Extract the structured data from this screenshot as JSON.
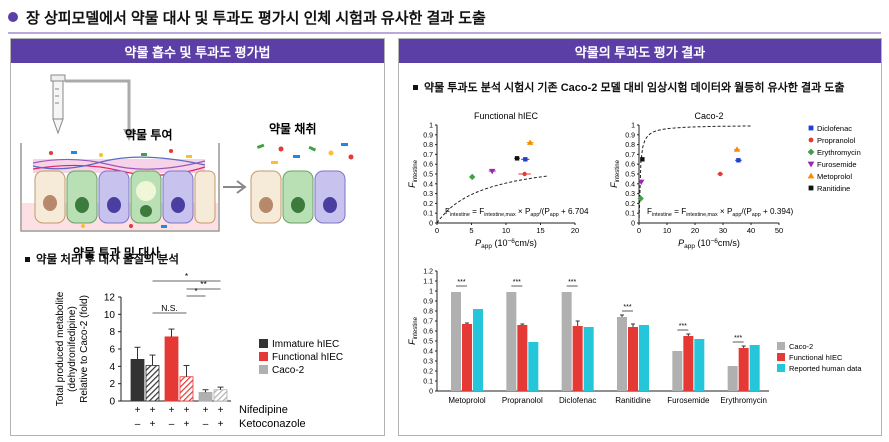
{
  "headline": "장 상피모델에서 약물 대사 및 투과도 평가시 인체 시험과 유사한 결과 도출",
  "left_panel": {
    "title": "약물 흡수 및 투과도 평가법",
    "label_dose": "약물 투여",
    "label_collect": "약물 채취",
    "label_transport": "약물 투과 및 대사",
    "section_title": "약물 처리 후 대사 물질의 분석"
  },
  "right_panel": {
    "title": "약물의 투과도 평가 결과",
    "summary": "약물 투과도 분석 시험시 기존 Caco-2 모델 대비 임상시험 데이터와 월등히 유사한 결과 도출"
  },
  "colors": {
    "purple": "#5b3fa6",
    "immature": "#333333",
    "functional": "#e53935",
    "caco2": "#b0b0b0",
    "reported": "#26c6da"
  },
  "chart_data": [
    {
      "id": "metabolite",
      "type": "bar",
      "ylabel_lines": [
        "Total produced metabolite",
        "(dehydronifedipine)",
        "Relative to Caco-2 (fold)"
      ],
      "ylim": [
        0,
        12
      ],
      "yticks": [
        0,
        2,
        4,
        6,
        8,
        10,
        12
      ],
      "groups": [
        {
          "name": "Immature hIEC",
          "color": "#333333",
          "values": [
            4.8,
            4.1
          ],
          "errors": [
            1.4,
            1.2
          ]
        },
        {
          "name": "Functional hIEC",
          "color": "#e53935",
          "values": [
            7.4,
            2.8
          ],
          "errors": [
            0.9,
            1.3
          ]
        },
        {
          "name": "Caco-2",
          "color": "#b0b0b0",
          "values": [
            1.0,
            1.3
          ],
          "errors": [
            0.3,
            0.3
          ]
        }
      ],
      "row_labels": [
        "Nifedipine",
        "Ketoconazole"
      ],
      "nifedipine_signs": [
        "+",
        "+",
        "+",
        "+",
        "+",
        "+"
      ],
      "ketoconazole_signs": [
        "–",
        "+",
        "–",
        "+",
        "–",
        "+"
      ],
      "significance": [
        {
          "label": "*",
          "from": 1,
          "to": 5
        },
        {
          "label": "**",
          "from": 3,
          "to": 5
        },
        {
          "label": "*",
          "from": 3,
          "to": 4
        },
        {
          "label": "N.S.",
          "from": 1,
          "to": 3
        }
      ],
      "legend": [
        "Immature hIEC",
        "Functional hIEC",
        "Caco-2"
      ]
    },
    {
      "id": "functional-scatter",
      "type": "scatter",
      "title": "Functional hIEC",
      "xlabel_main": "P",
      "xlabel_sub": "app",
      "xlabel_unit": " (10",
      "xlabel_exp": "−6",
      "xlabel_tail": "cm/s)",
      "ylabel_main": "F",
      "ylabel_sub": "intestine",
      "xlim": [
        0,
        20
      ],
      "ylim": [
        0,
        1
      ],
      "xticks": [
        0,
        5,
        10,
        15,
        20
      ],
      "yticks": [
        0,
        0.1,
        0.2,
        0.3,
        0.4,
        0.5,
        0.6,
        0.7,
        0.8,
        0.9,
        1
      ],
      "fit_fmax": 0.68,
      "fit_k": 6.704,
      "equation": [
        "F",
        "intestine",
        " = F",
        "intestine,max",
        " × P",
        "app",
        "/(P",
        "app",
        " + 6.704"
      ],
      "points": [
        {
          "drug": "Diclofenac",
          "x": 12.8,
          "y": 0.65,
          "xerr": 0.6,
          "color": "#1f3fd1",
          "shape": "square"
        },
        {
          "drug": "Propranolol",
          "x": 12.7,
          "y": 0.5,
          "xerr": 0.9,
          "color": "#e53935",
          "shape": "circle"
        },
        {
          "drug": "Erythromycin",
          "x": 5.1,
          "y": 0.47,
          "xerr": 0.4,
          "color": "#43a047",
          "shape": "diamond"
        },
        {
          "drug": "Furosemide",
          "x": 8.0,
          "y": 0.53,
          "xerr": 0.5,
          "color": "#9c27b0",
          "shape": "triangle-down"
        },
        {
          "drug": "Metoprolol",
          "x": 13.5,
          "y": 0.82,
          "xerr": 0.5,
          "color": "#fb8c00",
          "shape": "triangle"
        },
        {
          "drug": "Ranitidine",
          "x": 11.6,
          "y": 0.66,
          "xerr": 0.4,
          "color": "#111111",
          "shape": "square"
        }
      ]
    },
    {
      "id": "caco2-scatter",
      "type": "scatter",
      "title": "Caco-2",
      "xlabel_main": "P",
      "xlabel_sub": "app",
      "xlabel_unit": " (10",
      "xlabel_exp": "−6",
      "xlabel_tail": "cm/s)",
      "ylabel_main": "F",
      "ylabel_sub": "intestine",
      "xlim": [
        0,
        50
      ],
      "ylim": [
        0,
        1
      ],
      "xticks": [
        0,
        10,
        20,
        30,
        40,
        50
      ],
      "yticks": [
        0,
        0.1,
        0.2,
        0.3,
        0.4,
        0.5,
        0.6,
        0.7,
        0.8,
        0.9,
        1
      ],
      "fit_fmax": 1.0,
      "fit_k": 0.394,
      "equation": [
        "F",
        "intestine",
        " = F",
        "intestine,max",
        " × P",
        "app",
        "/(P",
        "app",
        " + 0.394)"
      ],
      "points": [
        {
          "drug": "Diclofenac",
          "x": 35.5,
          "y": 0.64,
          "xerr": 1.2,
          "color": "#1f3fd1",
          "shape": "square"
        },
        {
          "drug": "Propranolol",
          "x": 29.0,
          "y": 0.5,
          "xerr": 1.0,
          "color": "#e53935",
          "shape": "circle"
        },
        {
          "drug": "Erythromycin",
          "x": 0.6,
          "y": 0.25,
          "xerr": 0.2,
          "color": "#43a047",
          "shape": "diamond"
        },
        {
          "drug": "Furosemide",
          "x": 0.8,
          "y": 0.42,
          "xerr": 0.2,
          "color": "#9c27b0",
          "shape": "triangle-down"
        },
        {
          "drug": "Metoprolol",
          "x": 35.0,
          "y": 0.75,
          "xerr": 1.0,
          "color": "#fb8c00",
          "shape": "triangle"
        },
        {
          "drug": "Ranitidine",
          "x": 1.2,
          "y": 0.65,
          "xerr": 0.2,
          "color": "#111111",
          "shape": "square"
        }
      ],
      "legend": [
        "Diclofenac",
        "Propranolol",
        "Erythromycin",
        "Furosemide",
        "Metoprolol",
        "Ranitidine"
      ]
    },
    {
      "id": "fintestine-bars",
      "type": "bar",
      "ylabel_main": "F",
      "ylabel_sub": "intestine",
      "ylim": [
        0,
        1.2
      ],
      "yticks": [
        0,
        0.1,
        0.2,
        0.3,
        0.4,
        0.5,
        0.6,
        0.7,
        0.8,
        0.9,
        1,
        1.1,
        1.2
      ],
      "categories": [
        "Metoprolol",
        "Propranolol",
        "Diclofenac",
        "Ranitidine",
        "Furosemide",
        "Erythromycin"
      ],
      "significance": [
        "***",
        "***",
        "***",
        "***",
        "***",
        "***"
      ],
      "series": [
        {
          "name": "Caco-2",
          "color": "#b0b0b0",
          "values": [
            0.99,
            0.99,
            0.99,
            0.74,
            0.4,
            0.25
          ],
          "errors": [
            0,
            0,
            0,
            0.02,
            0,
            0
          ]
        },
        {
          "name": "Functional hIEC",
          "color": "#e53935",
          "values": [
            0.67,
            0.66,
            0.65,
            0.64,
            0.55,
            0.43
          ],
          "errors": [
            0.01,
            0.01,
            0.05,
            0.03,
            0.02,
            0.02
          ]
        },
        {
          "name": "Reported human data",
          "color": "#26c6da",
          "values": [
            0.82,
            0.49,
            0.64,
            0.66,
            0.52,
            0.46
          ],
          "errors": [
            0,
            0,
            0,
            0,
            0,
            0
          ]
        }
      ],
      "legend": [
        "Caco-2",
        "Functional hIEC",
        "Reported human data"
      ]
    }
  ]
}
